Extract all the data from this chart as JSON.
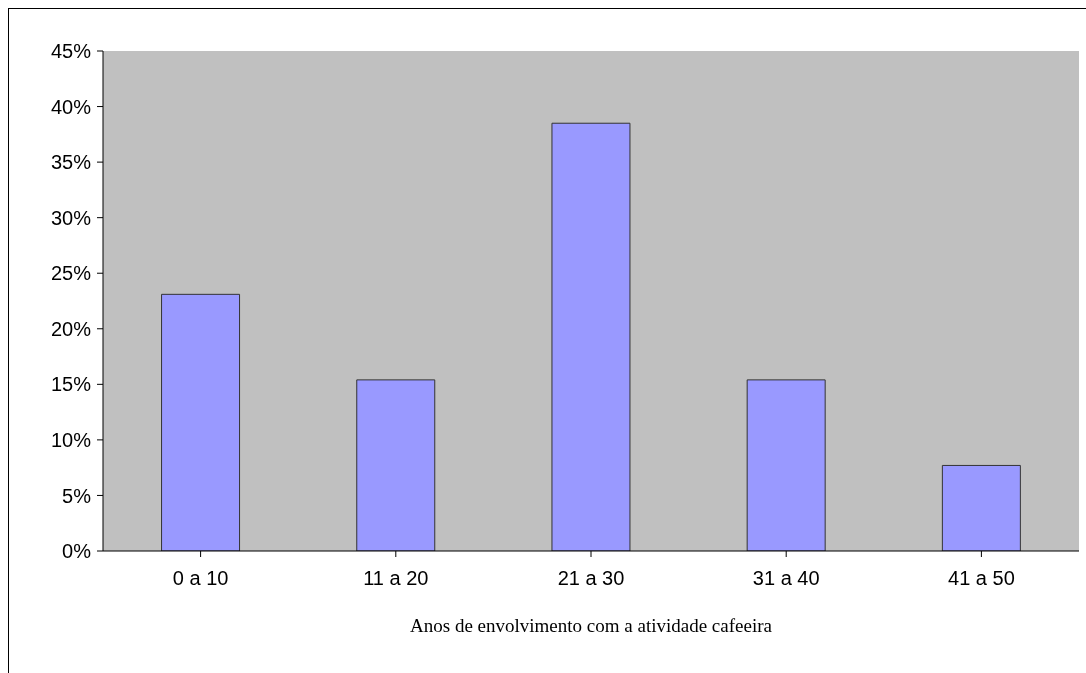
{
  "chart_data": {
    "type": "bar",
    "xlabel": "Anos de envolvimento com a atividade cafeeira",
    "categories": [
      "0 a 10",
      "11 a 20",
      "21 a 30",
      "31 a 40",
      "41 a 50"
    ],
    "values": [
      23.1,
      15.4,
      38.5,
      15.4,
      7.7
    ],
    "color": "#9999ff",
    "ylim": [
      0,
      45
    ],
    "yticks": [
      {
        "value": 0,
        "label": "0%"
      },
      {
        "value": 5,
        "label": "5%"
      },
      {
        "value": 10,
        "label": "10%"
      },
      {
        "value": 15,
        "label": "15%"
      },
      {
        "value": 20,
        "label": "20%"
      },
      {
        "value": 25,
        "label": "25%"
      },
      {
        "value": 30,
        "label": "30%"
      },
      {
        "value": 35,
        "label": "35%"
      },
      {
        "value": 40,
        "label": "40%"
      },
      {
        "value": 45,
        "label": "45%"
      }
    ],
    "grid": false
  }
}
